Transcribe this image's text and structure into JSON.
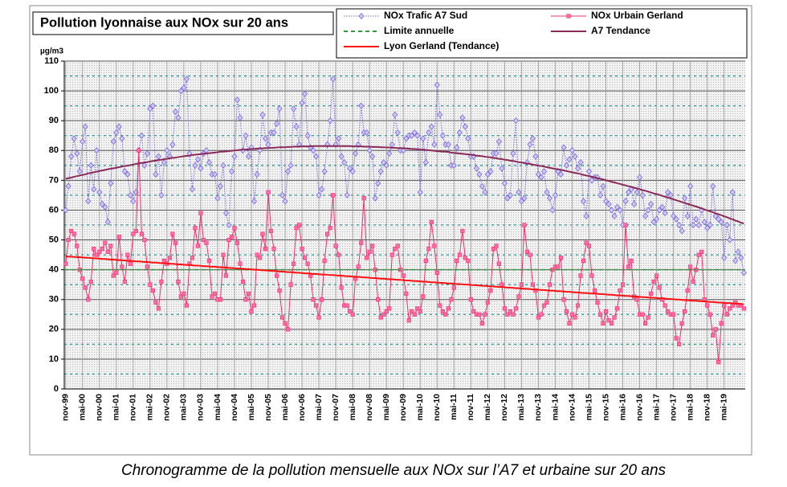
{
  "chart_data": {
    "type": "line",
    "title": "Pollution lyonnaise aux NOx sur 20 ans",
    "caption": "Chronogramme de la pollution mensuelle aux NOx sur l’A7 et urbaine sur 20 ans",
    "y_label": "µg/m3",
    "ylim": [
      0,
      110
    ],
    "yticks": [
      0,
      10,
      20,
      30,
      40,
      50,
      60,
      70,
      80,
      90,
      100,
      110
    ],
    "yminorticks": [
      5,
      15,
      25,
      35,
      45,
      55,
      65,
      75,
      85,
      95,
      105
    ],
    "grid": true,
    "categories": [
      "nov-99",
      null,
      null,
      null,
      null,
      null,
      "mai-00",
      null,
      null,
      null,
      null,
      null,
      "nov-00",
      null,
      null,
      null,
      null,
      null,
      "mai-01",
      null,
      null,
      null,
      null,
      null,
      "nov-01",
      null,
      null,
      null,
      null,
      null,
      "mai-02",
      null,
      null,
      null,
      null,
      null,
      "nov-02",
      null,
      null,
      null,
      null,
      null,
      "mai-03",
      null,
      null,
      null,
      null,
      null,
      "nov-03",
      null,
      null,
      null,
      null,
      null,
      "mai-04",
      null,
      null,
      null,
      null,
      null,
      "nov-04",
      null,
      null,
      null,
      null,
      null,
      "mai-05",
      null,
      null,
      null,
      null,
      null,
      "nov-05",
      null,
      null,
      null,
      null,
      null,
      "mai-06",
      null,
      null,
      null,
      null,
      null,
      "nov-06",
      null,
      null,
      null,
      null,
      null,
      "mai-07",
      null,
      null,
      null,
      null,
      null,
      "nov-07",
      null,
      null,
      null,
      null,
      null,
      "mai-08",
      null,
      null,
      null,
      null,
      null,
      "nov-08",
      null,
      null,
      null,
      null,
      null,
      "mai-09",
      null,
      null,
      null,
      null,
      null,
      "nov-09",
      null,
      null,
      null,
      null,
      null,
      "mai-10",
      null,
      null,
      null,
      null,
      null,
      "nov-10",
      null,
      null,
      null,
      null,
      null,
      "mai-11",
      null,
      null,
      null,
      null,
      null,
      "nov-11",
      null,
      null,
      null,
      null,
      null,
      "mai-12",
      null,
      null,
      null,
      null,
      null,
      "nov-12",
      null,
      null,
      null,
      null,
      null,
      "mai-13",
      null,
      null,
      null,
      null,
      null,
      "nov-13",
      null,
      null,
      null,
      null,
      null,
      "mai-14",
      null,
      null,
      null,
      null,
      null,
      "nov-14",
      null,
      null,
      null,
      null,
      null,
      "mai-15",
      null,
      null,
      null,
      null,
      null,
      "nov-15",
      null,
      null,
      null,
      null,
      null,
      "mai-16",
      null,
      null,
      null,
      null,
      null,
      "nov-16",
      null,
      null,
      null,
      null,
      null,
      "mai-17",
      null,
      null,
      null,
      null,
      null,
      "nov-17",
      null,
      null,
      null,
      null,
      null,
      "mai-18",
      null,
      null,
      null,
      null,
      null,
      "nov-18",
      null,
      null,
      null,
      null,
      null,
      "mai-19",
      null,
      null,
      null,
      null,
      null,
      null,
      null
    ],
    "series": [
      {
        "name": "NOx Trafic A7 Sud",
        "color": "#7b68d8",
        "dash": "dotted",
        "marker": "diamond",
        "values": [
          60,
          68,
          78,
          84,
          79,
          73,
          83,
          88,
          63,
          75,
          67,
          80,
          66,
          62,
          61,
          56,
          69,
          83,
          86,
          88,
          84,
          73,
          72,
          65,
          63,
          66,
          80,
          85,
          75,
          79,
          94,
          95,
          72,
          78,
          65,
          76,
          80,
          78,
          82,
          93,
          91,
          100,
          101,
          104,
          79,
          67,
          75,
          77,
          74,
          79,
          80,
          76,
          72,
          72,
          64,
          68,
          75,
          59,
          55,
          73,
          78,
          97,
          91,
          80,
          85,
          78,
          81,
          63,
          72,
          80,
          92,
          84,
          82,
          86,
          86,
          89,
          94,
          65,
          63,
          73,
          75,
          94,
          88,
          82,
          96,
          99,
          85,
          81,
          80,
          78,
          65,
          67,
          73,
          82,
          90,
          104,
          82,
          84,
          78,
          76,
          65,
          74,
          73,
          79,
          82,
          95,
          86,
          86,
          80,
          78,
          64,
          69,
          73,
          76,
          75,
          79,
          82,
          92,
          86,
          80,
          80,
          84,
          85,
          85,
          86,
          85,
          66,
          84,
          76,
          86,
          88,
          82,
          102,
          92,
          85,
          82,
          82,
          75,
          75,
          81,
          86,
          91,
          88,
          84,
          78,
          78,
          74,
          72,
          68,
          66,
          72,
          73,
          79,
          79,
          83,
          74,
          69,
          64,
          65,
          79,
          90,
          66,
          63,
          64,
          76,
          82,
          84,
          78,
          72,
          71,
          73,
          66,
          64,
          60,
          65,
          73,
          72,
          81,
          75,
          77,
          80,
          78,
          74,
          76,
          63,
          58,
          73,
          70,
          71,
          71,
          65,
          68,
          63,
          62,
          60,
          58,
          61,
          60,
          55,
          63,
          66,
          67,
          62,
          66,
          71,
          65,
          58,
          60,
          62,
          56,
          57,
          60,
          61,
          59,
          66,
          65,
          58,
          57,
          55,
          53,
          64,
          58,
          68,
          55,
          57,
          55,
          60,
          56,
          54,
          55,
          68,
          58,
          57,
          56,
          44,
          55,
          50,
          66,
          43,
          46,
          44,
          39
        ]
      },
      {
        "name": "NOx Urbain Gerland",
        "color": "#f0306a",
        "dash": "solid",
        "marker": "square",
        "values": [
          42,
          50,
          53,
          52,
          48,
          40,
          37,
          34,
          30,
          36,
          47,
          45,
          46,
          47,
          49,
          46,
          48,
          38,
          39,
          51,
          41,
          36,
          45,
          42,
          52,
          53,
          80,
          52,
          50,
          41,
          35,
          33,
          29,
          27,
          36,
          43,
          42,
          44,
          52,
          49,
          36,
          31,
          32,
          28,
          42,
          44,
          54,
          48,
          59,
          50,
          49,
          43,
          31,
          32,
          30,
          30,
          45,
          38,
          50,
          51,
          54,
          49,
          42,
          36,
          30,
          32,
          26,
          28,
          45,
          44,
          52,
          47,
          66,
          53,
          47,
          38,
          33,
          24,
          22,
          20,
          35,
          42,
          54,
          55,
          47,
          44,
          42,
          38,
          30,
          28,
          24,
          30,
          43,
          52,
          54,
          65,
          48,
          45,
          34,
          28,
          28,
          26,
          25,
          37,
          41,
          49,
          64,
          44,
          46,
          48,
          40,
          30,
          24,
          25,
          26,
          27,
          45,
          47,
          48,
          40,
          38,
          32,
          23,
          26,
          25,
          27,
          26,
          31,
          43,
          47,
          56,
          48,
          39,
          28,
          26,
          25,
          27,
          30,
          34,
          43,
          45,
          53,
          44,
          43,
          30,
          26,
          25,
          25,
          22,
          25,
          29,
          33,
          47,
          48,
          42,
          35,
          27,
          25,
          26,
          25,
          27,
          31,
          35,
          55,
          46,
          45,
          35,
          33,
          24,
          25,
          28,
          29,
          35,
          40,
          41,
          41,
          44,
          30,
          26,
          22,
          25,
          24,
          28,
          38,
          43,
          49,
          48,
          38,
          33,
          29,
          25,
          22,
          26,
          23,
          22,
          24,
          27,
          33,
          35,
          55,
          41,
          43,
          31,
          30,
          25,
          25,
          22,
          24,
          32,
          36,
          38,
          34,
          30,
          28,
          26,
          25,
          25,
          17,
          15,
          22,
          26,
          33,
          41,
          36,
          40,
          45,
          46,
          30,
          28,
          25,
          18,
          20,
          9,
          22,
          28,
          25,
          27,
          28,
          29,
          28,
          28,
          27
        ]
      },
      {
        "name": "Limite annuelle",
        "color": "#2e9e3a",
        "dash": "dashed",
        "value": 40
      },
      {
        "name": "A7 Tendance",
        "color": "#8b2a5a",
        "dash": "solid",
        "values": [
          70.5,
          70.7,
          70.9,
          71.2,
          71.4,
          71.6,
          71.8,
          72.0,
          72.3,
          72.5,
          72.7,
          72.9,
          73.1,
          73.3,
          73.5,
          73.7,
          73.9,
          74.0,
          74.2,
          74.4,
          74.6,
          74.8,
          74.9,
          75.1,
          75.3,
          75.5,
          75.7,
          75.8,
          76.0,
          76.1,
          76.3,
          76.5,
          76.6,
          76.8,
          76.9,
          77.1,
          77.2,
          77.4,
          77.5,
          77.6,
          77.8,
          77.9,
          78.1,
          78.2,
          78.3,
          78.5,
          78.6,
          78.7,
          78.8,
          78.9,
          79.0,
          79.1,
          79.2,
          79.3,
          79.4,
          79.6,
          79.6,
          79.7,
          79.8,
          79.9,
          80.0,
          80.1,
          80.2,
          80.3,
          80.3,
          80.4,
          80.5,
          80.5,
          80.6,
          80.7,
          80.7,
          80.8,
          80.8,
          80.9,
          80.9,
          81.0,
          81.1,
          81.1,
          81.1,
          81.2,
          81.2,
          81.3,
          81.3,
          81.3,
          81.4,
          81.4,
          81.4,
          81.4,
          81.5,
          81.5,
          81.5,
          81.5,
          81.5,
          81.5,
          81.5,
          81.5,
          81.5,
          81.5,
          81.5,
          81.5,
          81.5,
          81.5,
          81.4,
          81.4,
          81.4,
          81.4,
          81.3,
          81.3,
          81.3,
          81.2,
          81.2,
          81.2,
          81.1,
          81.1,
          81.0,
          81.0,
          80.9,
          80.9,
          80.8,
          80.8,
          80.7,
          80.7,
          80.6,
          80.5,
          80.5,
          80.4,
          80.3,
          80.3,
          80.2,
          80.1,
          80.0,
          79.9,
          79.8,
          79.7,
          79.6,
          79.6,
          79.5,
          79.3,
          79.2,
          79.1,
          79.0,
          78.9,
          78.8,
          78.7,
          78.6,
          78.5,
          78.3,
          78.2,
          78.1,
          77.9,
          77.8,
          77.7,
          77.5,
          77.4,
          77.2,
          77.1,
          76.9,
          76.8,
          76.6,
          76.5,
          76.3,
          76.1,
          76.0,
          75.8,
          75.6,
          75.5,
          75.3,
          75.1,
          74.9,
          74.8,
          74.6,
          74.4,
          74.2,
          74.0,
          73.8,
          73.7,
          73.5,
          73.3,
          73.1,
          72.9,
          72.7,
          72.5,
          72.3,
          72.1,
          71.8,
          71.6,
          71.4,
          71.2,
          71.0,
          70.7,
          70.5,
          70.3,
          70.0,
          69.8,
          69.5,
          69.3,
          69.0,
          68.8,
          68.5,
          68.3,
          68.0,
          67.8,
          67.5,
          67.3,
          67.0,
          66.7,
          66.5,
          66.2,
          65.9,
          65.6,
          65.4,
          65.1,
          64.8,
          64.5,
          64.2,
          63.9,
          63.6,
          63.3,
          63.0,
          62.7,
          62.4,
          62.1,
          61.8,
          61.5,
          61.2,
          60.9,
          60.6,
          60.2,
          59.9,
          59.6,
          59.3,
          58.9,
          58.6,
          58.3,
          57.9,
          57.6,
          57.2,
          56.9,
          56.5,
          56.2,
          55.8,
          55.5
        ]
      },
      {
        "name": "Lyon Gerland (Tendance)",
        "color": "#ff1010",
        "dash": "solid",
        "values": [
          44.5,
          44.4,
          44.4,
          44.3,
          44.2,
          44.2,
          44.1,
          44.0,
          44.0,
          43.9,
          43.8,
          43.8,
          43.7,
          43.6,
          43.6,
          43.5,
          43.4,
          43.4,
          43.3,
          43.2,
          43.2,
          43.1,
          43.0,
          43.0,
          42.9,
          42.8,
          42.8,
          42.7,
          42.6,
          42.6,
          42.5,
          42.4,
          42.4,
          42.3,
          42.2,
          42.2,
          42.1,
          42.0,
          42.0,
          41.9,
          41.8,
          41.8,
          41.7,
          41.6,
          41.6,
          41.5,
          41.4,
          41.4,
          41.3,
          41.2,
          41.2,
          41.1,
          41.0,
          41.0,
          40.9,
          40.8,
          40.8,
          40.7,
          40.6,
          40.6,
          40.5,
          40.4,
          40.4,
          40.3,
          40.2,
          40.2,
          40.1,
          40.0,
          40.0,
          39.9,
          39.8,
          39.8,
          39.7,
          39.6,
          39.6,
          39.5,
          39.4,
          39.4,
          39.3,
          39.2,
          39.2,
          39.1,
          39.0,
          39.0,
          38.9,
          38.8,
          38.8,
          38.7,
          38.6,
          38.6,
          38.5,
          38.4,
          38.4,
          38.3,
          38.2,
          38.2,
          38.1,
          38.0,
          38.0,
          37.9,
          37.8,
          37.8,
          37.7,
          37.6,
          37.6,
          37.5,
          37.4,
          37.4,
          37.3,
          37.2,
          37.2,
          37.1,
          37.0,
          37.0,
          36.9,
          36.8,
          36.8,
          36.7,
          36.6,
          36.6,
          36.5,
          36.4,
          36.4,
          36.3,
          36.2,
          36.2,
          36.1,
          36.0,
          36.0,
          35.9,
          35.8,
          35.8,
          35.7,
          35.6,
          35.6,
          35.5,
          35.4,
          35.4,
          35.3,
          35.2,
          35.2,
          35.1,
          35.0,
          35.0,
          34.9,
          34.8,
          34.8,
          34.7,
          34.6,
          34.6,
          34.5,
          34.4,
          34.4,
          34.3,
          34.2,
          34.2,
          34.1,
          34.0,
          34.0,
          33.9,
          33.8,
          33.8,
          33.7,
          33.6,
          33.6,
          33.5,
          33.4,
          33.4,
          33.3,
          33.2,
          33.2,
          33.1,
          33.0,
          33.0,
          32.9,
          32.8,
          32.8,
          32.7,
          32.6,
          32.6,
          32.5,
          32.4,
          32.4,
          32.3,
          32.2,
          32.2,
          32.1,
          32.0,
          32.0,
          31.9,
          31.8,
          31.8,
          31.7,
          31.6,
          31.6,
          31.5,
          31.4,
          31.4,
          31.3,
          31.2,
          31.2,
          31.1,
          31.0,
          31.0,
          30.9,
          30.8,
          30.8,
          30.7,
          30.6,
          30.6,
          30.5,
          30.4,
          30.4,
          30.3,
          30.2,
          30.2,
          30.1,
          30.0,
          30.0,
          29.9,
          29.8,
          29.8,
          29.7,
          29.6,
          29.6,
          29.5,
          29.4,
          29.4,
          29.3,
          29.2,
          29.2,
          29.1,
          29.0,
          29.0,
          28.9,
          28.8,
          28.8,
          28.7,
          28.6,
          28.6,
          28.5,
          28.4
        ]
      }
    ]
  }
}
